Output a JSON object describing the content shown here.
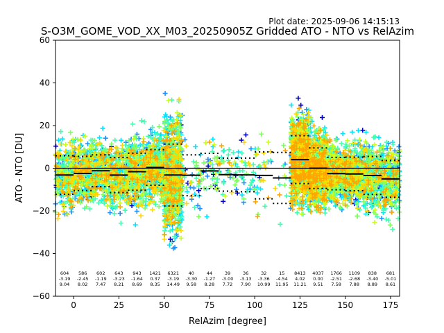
{
  "plot_date": "Plot date: 2025-09-06 14:15:13",
  "chart_data": {
    "type": "scatter",
    "title": "S-O3M_GOME_VOD_XX_M03_20250905Z Gridded ATO - NTO vs RelAzim",
    "xlabel": "RelAzim [degree]",
    "ylabel": "ATO - NTO [DU]",
    "xlim": [
      -10,
      180
    ],
    "ylim": [
      -60,
      60
    ],
    "xticks": [
      0,
      25,
      50,
      75,
      100,
      125,
      150,
      175
    ],
    "yticks": [
      -60,
      -40,
      -20,
      0,
      20,
      40,
      60
    ],
    "grid": false,
    "marker": "+",
    "zero_line": 0,
    "bin_width": 10,
    "bins": [
      {
        "x": -5,
        "n": "604",
        "mean": "-3.19",
        "std": "9.04"
      },
      {
        "x": 5,
        "n": "586",
        "mean": "-2.45",
        "std": "8.02"
      },
      {
        "x": 15,
        "n": "602",
        "mean": "-1.19",
        "std": "7.47"
      },
      {
        "x": 25,
        "n": "643",
        "mean": "-3.23",
        "std": "8.21"
      },
      {
        "x": 35,
        "n": "943",
        "mean": "-1.64",
        "std": "8.69"
      },
      {
        "x": 45,
        "n": "1421",
        "mean": "0.37",
        "std": "8.35"
      },
      {
        "x": 55,
        "n": "6321",
        "mean": "-3.19",
        "std": "14.49"
      },
      {
        "x": 65,
        "n": "40",
        "mean": "-3.30",
        "std": "9.58"
      },
      {
        "x": 75,
        "n": "44",
        "mean": "-1.27",
        "std": "8.28"
      },
      {
        "x": 85,
        "n": "39",
        "mean": "-3.00",
        "std": "7.72"
      },
      {
        "x": 95,
        "n": "36",
        "mean": "-3.13",
        "std": "7.90"
      },
      {
        "x": 105,
        "n": "32",
        "mean": "-3.36",
        "std": "10.99"
      },
      {
        "x": 115,
        "n": "15",
        "mean": "-4.54",
        "std": "11.95"
      },
      {
        "x": 125,
        "n": "8413",
        "mean": "4.02",
        "std": "11.21"
      },
      {
        "x": 135,
        "n": "4037",
        "mean": "0.00",
        "std": "9.51"
      },
      {
        "x": 145,
        "n": "1766",
        "mean": "-2.51",
        "std": "7.58"
      },
      {
        "x": 155,
        "n": "1109",
        "mean": "-2.68",
        "std": "7.88"
      },
      {
        "x": 165,
        "n": "838",
        "mean": "-3.40",
        "std": "8.89"
      },
      {
        "x": 175,
        "n": "681",
        "mean": "-5.01",
        "std": "8.61"
      }
    ],
    "series_description_colors": [
      "#0000cd",
      "#1e90ff",
      "#00e5ff",
      "#40ffb0",
      "#80ff60",
      "#c8ff20",
      "#ffd700",
      "#ffa500"
    ]
  }
}
